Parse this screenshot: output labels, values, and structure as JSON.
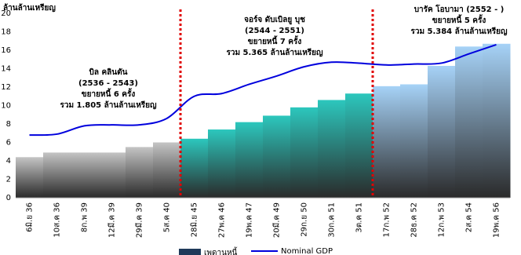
{
  "chart_data": {
    "type": "bar_line",
    "y_label": "ล้านล้านเหรียญ",
    "categories": [
      "6มิ.ย 36",
      "10ส.ค 36",
      "8ก.พ 39",
      "12มี.ค 39",
      "29มี.ค 39",
      "5ส.ค 40",
      "28มิ.ย 45",
      "27พ.ค 46",
      "19พ.ค 47",
      "20มี.ค 49",
      "29ก.ย 50",
      "30ก.ค 51",
      "3ต.ค 51",
      "17ก.พ 52",
      "28ธ.ค 52",
      "12ก.พ 53",
      "2ส.ค 54",
      "19พ.ค 56"
    ],
    "series": [
      {
        "name": "เพดานหนี้",
        "type": "bar",
        "color": "#1f3a5a",
        "bar_colors": [
          "#c4c4c4",
          "#c4c4c4",
          "#c4c4c4",
          "#c4c4c4",
          "#c4c4c4",
          "#c4c4c4",
          "#2cc7bd",
          "#2cc7bd",
          "#2cc7bd",
          "#2cc7bd",
          "#2cc7bd",
          "#2cc7bd",
          "#2cc7bd",
          "#a6d2f7",
          "#a6d2f7",
          "#a6d2f7",
          "#a6d2f7",
          "#a6d2f7"
        ],
        "values": [
          4.4,
          4.9,
          4.9,
          4.9,
          5.5,
          6.0,
          6.4,
          7.4,
          8.2,
          8.9,
          9.8,
          10.6,
          11.3,
          12.1,
          12.3,
          14.3,
          16.4,
          16.7
        ]
      },
      {
        "name": "Nominal GDP",
        "type": "line",
        "color": "#0000dd",
        "values": [
          6.8,
          6.9,
          7.8,
          7.9,
          7.9,
          8.6,
          11.0,
          11.3,
          12.3,
          13.2,
          14.2,
          14.7,
          14.6,
          14.4,
          14.5,
          14.6,
          15.6,
          16.6
        ]
      }
    ],
    "ylim": [
      0,
      20
    ],
    "yticks": [
      0,
      2,
      4,
      6,
      8,
      10,
      12,
      14,
      16,
      18,
      20
    ],
    "divider_color": "#e00000",
    "annotations": [
      [
        "บิล คลินตัน",
        "(2536 - 2543)",
        "ขยายหนี้ 6 ครั้ง",
        "รวม 1.805 ล้านล้านเหรียญ"
      ],
      [
        "จอร์จ ดับเบิลยู บุช",
        "(2544 - 2551)",
        "ขยายหนี้ 7 ครั้ง",
        "รวม 5.365 ล้านล้านเหรียญ"
      ],
      [
        "บารัค โอบามา (2552 - )",
        "ขยายหนี้ 5 ครั้ง",
        "รวม 5.384 ล้านล้านเหรียญ"
      ]
    ]
  }
}
